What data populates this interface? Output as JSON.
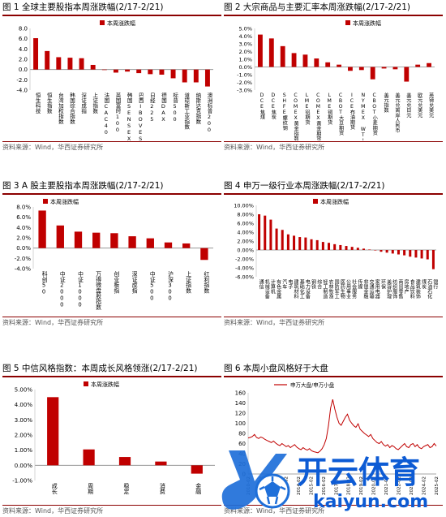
{
  "panels": [
    {
      "title": "图 1 全球主要股指本周涨跌幅(2/17-2/21)",
      "source": "资料来源：Wind，华西证券研究所"
    },
    {
      "title": "图 2 大宗商品与主要汇率本周涨跌幅(2/17-2/21)",
      "source": "资料来源：Wind，华西证券研究所"
    },
    {
      "title": "图 3 A 股主要股指本周涨跌幅(2/17-2/21)",
      "source": "资料来源：Wind，华西证券研究所"
    },
    {
      "title": "图 4 申万一级行业本周涨跌幅(2/17-2/21)",
      "source": "资料来源：Wind，华西证券研究所"
    },
    {
      "title": "图 5 中信风格指数：本周成长风格领涨(2/17-2/21)",
      "source": "资料来源：Wind，华西证券研究所"
    },
    {
      "title": "图 6 本周小盘风格好于大盘",
      "source": "资料来源：Wind，华西证券研究所"
    }
  ],
  "watermark": {
    "main": "开云体育",
    "sub": "kaiyun.com"
  },
  "colors": {
    "bar": "#c00000",
    "line": "#c00000",
    "frame": "#8b0000"
  },
  "chart_data": [
    {
      "type": "bar",
      "legend": "本周涨跌幅",
      "legend_position": "top-center",
      "ylim": [
        -4,
        8
      ],
      "yticks": [
        "8.0",
        "6.0",
        "4.0",
        "2.0",
        "0.0",
        "-2.0",
        "-4.0"
      ],
      "categories": [
        "恒生科技",
        "恒生指数",
        "台湾加权指数",
        "韩国综合指数",
        "深证成指",
        "上证指数",
        "法国CAC40",
        "英国富时100",
        "韩国SENSEX30",
        "巴西IBOVESPA指数",
        "日经225",
        "德国DAX",
        "标普500",
        "道琼斯工业指数",
        "纳斯达克指数",
        "澳洲标普200"
      ],
      "values": [
        6.1,
        3.6,
        2.4,
        2.3,
        2.2,
        0.9,
        -0.1,
        -0.6,
        -0.4,
        -0.7,
        -0.9,
        -1.0,
        -1.7,
        -2.5,
        -2.5,
        -3.3
      ]
    },
    {
      "type": "bar",
      "legend": "本周涨跌幅",
      "legend_position": "top-right",
      "ylim": [
        -3,
        5
      ],
      "yticks": [
        "5.0%",
        "4.0%",
        "3.0%",
        "2.0%",
        "1.0%",
        "0.0%",
        "-1.0%",
        "-2.0%",
        "-3.0%"
      ],
      "categories": [
        "DCE焦煤",
        "DCE焦炭",
        "SHFE螺纹钢",
        "COMEX黄金指数",
        "LME铝期货",
        "COMEX黄金期货",
        "LME铜期货",
        "CBOT大豆期货",
        "ICE布油期货",
        "NYMEX WTI原油期货",
        "CBOT小麦期货",
        "美元指数",
        "美元兑离岸人民币",
        "美元兑日元",
        "欧元兑美元",
        "英镑兑美元"
      ],
      "values": [
        4.2,
        3.7,
        2.7,
        1.8,
        1.6,
        1.1,
        0.6,
        0.3,
        -0.5,
        -0.4,
        -1.6,
        -0.2,
        -0.3,
        -1.9,
        0.3,
        0.5
      ]
    },
    {
      "type": "bar",
      "legend": "本周涨跌幅",
      "legend_position": "top-left",
      "ylim": [
        -4,
        8
      ],
      "yticks": [
        "8.0%",
        "6.0%",
        "4.0%",
        "2.0%",
        "0.0%",
        "-2.0%",
        "-4.0%"
      ],
      "categories": [
        "科创50",
        "中证2000",
        "中证1000",
        "万得微盘股指数",
        "创业板指",
        "深证成指",
        "中证500",
        "沪深300",
        "上证指数",
        "红利指数"
      ],
      "values": [
        7.3,
        4.4,
        3.2,
        3.0,
        2.9,
        2.3,
        1.9,
        1.1,
        0.9,
        -2.3
      ]
    },
    {
      "type": "bar",
      "legend": "本周涨跌幅",
      "legend_position": "top-center",
      "ylim": [
        -6,
        10
      ],
      "yticks": [
        "10.00%",
        "8.00%",
        "6.00%",
        "4.00%",
        "2.00%",
        "0.00%",
        "-2.00%",
        "-4.00%",
        "-6.00%"
      ],
      "categories": [
        "通信",
        "机械设备",
        "计算机",
        "有色金属",
        "汽车",
        "电子",
        "建筑材料",
        "基础化工",
        "电力设备",
        "钢铁",
        "综合",
        "轻工制造",
        "农林牧渔",
        "国防军工",
        "医药生物",
        "公用事业",
        "社会服务",
        "传媒",
        "非银金融",
        "交通运输",
        "家用电器",
        "环保",
        "美容护理",
        "纺织服饰",
        "商贸零售",
        "房地产",
        "食品饮料",
        "建筑装饰",
        "煤炭",
        "石油石化",
        "银行"
      ],
      "values": [
        8.0,
        7.7,
        6.8,
        4.8,
        4.5,
        3.5,
        3.2,
        2.9,
        2.8,
        2.4,
        2.2,
        1.8,
        1.6,
        1.3,
        1.1,
        0.9,
        0.7,
        0.5,
        0.3,
        0.1,
        -0.1,
        -0.4,
        -0.6,
        -0.8,
        -1.0,
        -1.2,
        -1.5,
        -1.7,
        -1.9,
        -2.1,
        -4.3
      ]
    },
    {
      "type": "bar",
      "legend": "本周涨跌幅",
      "legend_position": "top-center",
      "ylim": [
        -1.0,
        5.0
      ],
      "yticks": [
        "5.00%",
        "4.00%",
        "3.00%",
        "2.00%",
        "1.00%",
        "0.00%",
        "-1.00%"
      ],
      "categories": [
        "成长",
        "周期",
        "稳定",
        "消费",
        "金融"
      ],
      "values": [
        4.5,
        1.05,
        0.55,
        0.25,
        -0.55
      ]
    },
    {
      "type": "line",
      "legend": "申万大盘/申万小盘",
      "legend_position": "top-left",
      "ylim": [
        0,
        160
      ],
      "yticks": [
        "160",
        "140",
        "120",
        "100",
        "80",
        "60",
        "40",
        "20",
        "0"
      ],
      "x_labels": [
        "2010-02",
        "2011-02",
        "2012-02",
        "2013-02",
        "2014-02",
        "2015-02",
        "2016-02",
        "2017-02",
        "2018-02",
        "2019-02",
        "2020-02",
        "2021-02",
        "2022-02",
        "2023-02",
        "2024-02",
        "2025-02"
      ],
      "series": [
        {
          "values": [
            71,
            72,
            74,
            78,
            72,
            70,
            73,
            71,
            68,
            66,
            64,
            62,
            65,
            61,
            58,
            56,
            60,
            57,
            54,
            56,
            52,
            55,
            58,
            53,
            50,
            48,
            52,
            49,
            47,
            50,
            46,
            44,
            43,
            42,
            45,
            50,
            58,
            70,
            96,
            130,
            147,
            128,
            112,
            100,
            96,
            104,
            112,
            118,
            106,
            100,
            95,
            92,
            99,
            88,
            84,
            80,
            77,
            74,
            78,
            70,
            66,
            62,
            60,
            64,
            58,
            55,
            58,
            52,
            56,
            54,
            50,
            48,
            52,
            56,
            60,
            54,
            52,
            58,
            60,
            54,
            58,
            52,
            50,
            54,
            56,
            58,
            52,
            54,
            60,
            55
          ]
        }
      ]
    }
  ]
}
